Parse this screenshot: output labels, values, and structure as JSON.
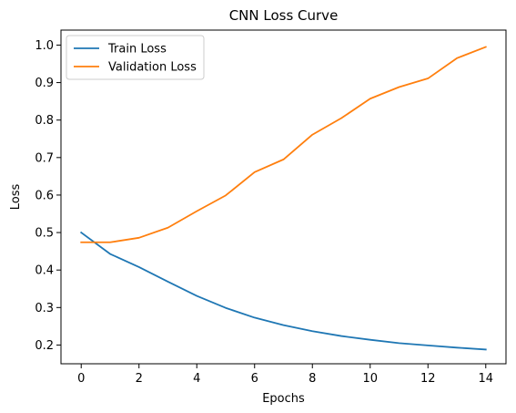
{
  "chart_data": {
    "type": "line",
    "title": "CNN Loss Curve",
    "xlabel": "Epochs",
    "ylabel": "Loss",
    "x": [
      0,
      1,
      2,
      3,
      4,
      5,
      6,
      7,
      8,
      9,
      10,
      11,
      12,
      13,
      14
    ],
    "xlim": [
      -0.7,
      14.7
    ],
    "ylim": [
      0.15,
      1.04
    ],
    "xticks": [
      0,
      2,
      4,
      6,
      8,
      10,
      12,
      14
    ],
    "yticks": [
      0.2,
      0.3,
      0.4,
      0.5,
      0.6,
      0.7,
      0.8,
      0.9,
      1.0
    ],
    "grid": false,
    "legend_position": "top-left",
    "series": [
      {
        "name": "Train Loss",
        "color": "#1f77b4",
        "values": [
          0.5,
          0.443,
          0.408,
          0.369,
          0.331,
          0.299,
          0.273,
          0.253,
          0.237,
          0.224,
          0.214,
          0.205,
          0.199,
          0.193,
          0.188
        ]
      },
      {
        "name": "Validation Loss",
        "color": "#ff7f0e",
        "values": [
          0.474,
          0.474,
          0.486,
          0.513,
          0.557,
          0.599,
          0.661,
          0.695,
          0.761,
          0.805,
          0.857,
          0.888,
          0.911,
          0.965,
          0.995
        ]
      }
    ]
  }
}
